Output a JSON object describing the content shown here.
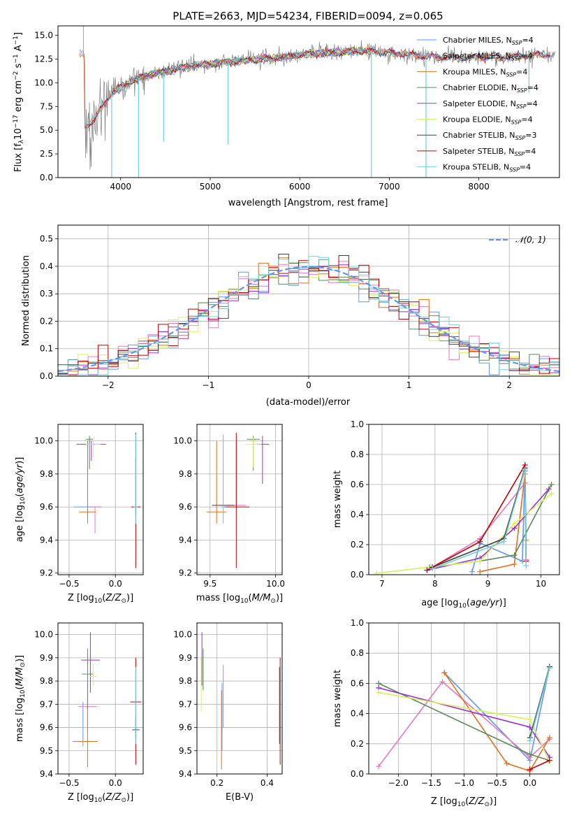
{
  "colors": {
    "data": "#808080",
    "chabrier_miles": "#6495ED",
    "salpeter_miles": "#E377C2",
    "kroupa_miles": "#E07020",
    "chabrier_elodie": "#5A8A5A",
    "salpeter_elodie": "#9932CC",
    "kroupa_elodie": "#D8F060",
    "chabrier_stelib": "#404040",
    "salpeter_stelib": "#C00000",
    "kroupa_stelib": "#70D0D8"
  },
  "chart_data": [
    {
      "id": "spectrum",
      "type": "line",
      "title": "PLATE=2663, MJD=54234, FIBERID=0094, z=0.065",
      "xlabel": "wavelength [Angstrom, rest frame]",
      "ylabel": "Flux [f_λ10^-17 erg cm^-2 s^-1 A^-1]",
      "xlim": [
        3300,
        8900
      ],
      "ylim": [
        0,
        16
      ],
      "xticks": [
        4000,
        5000,
        6000,
        7000,
        8000
      ],
      "yticks": [
        0.0,
        2.5,
        5.0,
        7.5,
        10.0,
        12.5,
        15.0
      ],
      "grid": false,
      "legend_position": "upper-right",
      "legend": [
        {
          "label": "Chabrier MILES, N",
          "sub": "SSP",
          "tail": "=4",
          "color": "#6495ED"
        },
        {
          "label": "Salpeter MILES, N",
          "sub": "SSP",
          "tail": "=4",
          "color": "#E377C2"
        },
        {
          "label": "Kroupa MILES, N",
          "sub": "SSP",
          "tail": "=4",
          "color": "#E07020"
        },
        {
          "label": "Chabrier ELODIE, N",
          "sub": "SSP",
          "tail": "=4",
          "color": "#5A8A5A"
        },
        {
          "label": "Salpeter ELODIE, N",
          "sub": "SSP",
          "tail": "=4",
          "color": "#9932CC"
        },
        {
          "label": "Kroupa ELODIE, N",
          "sub": "SSP",
          "tail": "=4",
          "color": "#D8F060"
        },
        {
          "label": "Chabrier STELIB, N",
          "sub": "SSP",
          "tail": "=3",
          "color": "#404040"
        },
        {
          "label": "Salpeter STELIB, N",
          "sub": "SSP",
          "tail": "=4",
          "color": "#C00000"
        },
        {
          "label": "Kroupa STELIB, N",
          "sub": "SSP",
          "tail": "=4",
          "color": "#70D0D8"
        }
      ],
      "continuum": {
        "x": [
          3600,
          3700,
          3800,
          3900,
          4000,
          4100,
          4200,
          4400,
          4600,
          4800,
          5000,
          5200,
          5400,
          5600,
          5800,
          6000,
          6200,
          6400,
          6600,
          6800,
          7000,
          7200,
          7400,
          7600,
          7800,
          8000,
          8200,
          8400,
          8600,
          8800
        ],
        "y": [
          5.5,
          6.0,
          7.5,
          9.0,
          9.5,
          10.0,
          10.5,
          11.0,
          11.4,
          11.8,
          12.0,
          12.2,
          12.4,
          12.5,
          12.7,
          12.9,
          13.1,
          13.2,
          13.3,
          13.3,
          13.2,
          13.0,
          12.8,
          12.7,
          12.6,
          12.7,
          12.7,
          12.8,
          12.9,
          13.0
        ]
      },
      "sharp_dips": [
        {
          "x": 3900,
          "y": 0.0
        },
        {
          "x": 4200,
          "y": 0.0
        },
        {
          "x": 4480,
          "y": 3.8
        },
        {
          "x": 5200,
          "y": 3.5
        },
        {
          "x": 6800,
          "y": 0.0
        },
        {
          "x": 7410,
          "y": 0.0
        },
        {
          "x": 8560,
          "y": 9.0
        }
      ]
    },
    {
      "id": "residuals",
      "type": "histogram",
      "xlabel": "(data-model)/error",
      "ylabel": "Normed distribution",
      "xlim": [
        -2.5,
        2.5
      ],
      "ylim": [
        0,
        0.55
      ],
      "xticks": [
        -2,
        -1,
        0,
        1,
        2
      ],
      "yticks": [
        0.0,
        0.1,
        0.2,
        0.3,
        0.4,
        0.5
      ],
      "grid": true,
      "legend_position": "upper-right",
      "legend_label": "𝒩(0, 1)",
      "legend_color": "#6495ED",
      "bin_width": 0.1,
      "bin_start": -2.5,
      "gaussian": {
        "mean": 0,
        "sigma": 1
      }
    },
    {
      "id": "age-vs-Z",
      "type": "errorbar",
      "xlabel": "Z [log10(Z/Z⊙)]",
      "ylabel": "age [log10(age/yr)]",
      "xlim": [
        -0.62,
        0.3
      ],
      "ylim": [
        9.19,
        10.1
      ],
      "xticks": [
        -0.5,
        0.0
      ],
      "yticks": [
        9.2,
        9.4,
        9.6,
        9.8,
        10.0
      ],
      "grid": true,
      "points": [
        {
          "x": -0.3,
          "y": 9.6,
          "xerr": 0.3,
          "ylo": 9.52,
          "yhi": 10.0,
          "color": "#6495ED"
        },
        {
          "x": -0.22,
          "y": 9.6,
          "xerr": 0.12,
          "ylo": 9.44,
          "yhi": 9.6,
          "color": "#E377C2"
        },
        {
          "x": -0.3,
          "y": 9.57,
          "xerr": 0.18,
          "ylo": 9.5,
          "yhi": 10.0,
          "color": "#E07020"
        },
        {
          "x": -0.28,
          "y": 10.01,
          "xerr": 0.08,
          "ylo": 9.83,
          "yhi": 10.03,
          "color": "#5A8A5A"
        },
        {
          "x": -0.26,
          "y": 9.98,
          "xerr": 0.32,
          "ylo": 9.88,
          "yhi": 10.0,
          "color": "#9932CC"
        },
        {
          "x": -0.24,
          "y": 9.98,
          "xerr": 0.16,
          "ylo": 9.9,
          "yhi": 10.02,
          "color": "#D8F060"
        },
        {
          "x": 0.22,
          "y": 9.6,
          "xerr": 0.08,
          "ylo": 9.55,
          "yhi": 10.05,
          "color": "#404040"
        },
        {
          "x": 0.22,
          "y": 9.6,
          "xerr": 0.1,
          "ylo": 9.23,
          "yhi": 9.9,
          "color": "#C00000"
        },
        {
          "x": 0.22,
          "y": 9.6,
          "xerr": 0.05,
          "ylo": 9.5,
          "yhi": 10.04,
          "color": "#70D0D8"
        }
      ]
    },
    {
      "id": "age-vs-mass",
      "type": "errorbar",
      "xlabel": "mass [log10(M/M⊙)]",
      "ylabel": "",
      "xlim": [
        9.4,
        10.05
      ],
      "ylim": [
        9.19,
        10.1
      ],
      "xticks": [
        9.5,
        10.0
      ],
      "yticks": [
        9.2,
        9.4,
        9.6,
        9.8,
        10.0
      ],
      "grid": true,
      "points": [
        {
          "x": 9.6,
          "y": 9.61,
          "xerr": 0.03,
          "ylo": 9.5,
          "yhi": 10.0,
          "color": "#6495ED"
        },
        {
          "x": 9.7,
          "y": 9.61,
          "xerr": 0.15,
          "ylo": 9.59,
          "yhi": 10.0,
          "color": "#E377C2"
        },
        {
          "x": 9.55,
          "y": 9.57,
          "xerr": 0.15,
          "ylo": 9.5,
          "yhi": 10.0,
          "color": "#E07020"
        },
        {
          "x": 9.83,
          "y": 10.01,
          "xerr": 0.1,
          "ylo": 9.82,
          "yhi": 10.03,
          "color": "#5A8A5A"
        },
        {
          "x": 9.9,
          "y": 9.98,
          "xerr": 0.1,
          "ylo": 9.74,
          "yhi": 10.03,
          "color": "#9932CC"
        },
        {
          "x": 9.83,
          "y": 9.98,
          "xerr": 0.12,
          "ylo": 9.84,
          "yhi": 10.02,
          "color": "#D8F060"
        },
        {
          "x": 9.6,
          "y": 9.61,
          "xerr": 0.17,
          "ylo": 9.55,
          "yhi": 10.03,
          "color": "#404040"
        },
        {
          "x": 9.7,
          "y": 9.6,
          "xerr": 0.2,
          "ylo": 9.23,
          "yhi": 10.05,
          "color": "#C00000"
        },
        {
          "x": 9.6,
          "y": 9.6,
          "xerr": 0.03,
          "ylo": 9.5,
          "yhi": 10.04,
          "color": "#70D0D8"
        }
      ]
    },
    {
      "id": "mass-weight-vs-age",
      "type": "line",
      "xlabel": "age [log10(age/yr)]",
      "ylabel": "mass weight",
      "xlim": [
        6.75,
        10.35
      ],
      "ylim": [
        0,
        1.0
      ],
      "xticks": [
        7,
        8,
        9,
        10
      ],
      "yticks": [
        0.0,
        0.2,
        0.4,
        0.6,
        0.8,
        1.0
      ],
      "grid": true,
      "series": [
        {
          "color": "#6495ED",
          "x": [
            8.7,
            8.85,
            9.65,
            9.7
          ],
          "y": [
            0.02,
            0.21,
            0.09,
            0.69
          ]
        },
        {
          "color": "#E377C2",
          "x": [
            7.95,
            8.85,
            9.7,
            9.72
          ],
          "y": [
            0.05,
            0.24,
            0.61,
            0.1
          ]
        },
        {
          "color": "#E07020",
          "x": [
            8.85,
            9.5,
            9.7,
            9.72
          ],
          "y": [
            0.02,
            0.07,
            0.67,
            0.23
          ]
        },
        {
          "color": "#5A8A5A",
          "x": [
            7.9,
            8.85,
            9.5,
            10.2
          ],
          "y": [
            0.05,
            0.09,
            0.13,
            0.6
          ]
        },
        {
          "color": "#9932CC",
          "x": [
            7.85,
            8.85,
            9.5,
            10.15
          ],
          "y": [
            0.03,
            0.11,
            0.31,
            0.57
          ]
        },
        {
          "color": "#D8F060",
          "x": [
            6.9,
            8.85,
            9.5,
            10.2
          ],
          "y": [
            0.01,
            0.09,
            0.34,
            0.54
          ]
        },
        {
          "color": "#404040",
          "x": [
            7.95,
            9.3,
            9.7
          ],
          "y": [
            0.05,
            0.24,
            0.71
          ]
        },
        {
          "color": "#C00000",
          "x": [
            7.85,
            8.85,
            9.7,
            9.72
          ],
          "y": [
            0.03,
            0.22,
            0.73,
            0.09
          ]
        },
        {
          "color": "#70D0D8",
          "x": [
            7.95,
            9.3,
            9.7,
            9.72
          ],
          "y": [
            0.04,
            0.22,
            0.7,
            0.06
          ]
        }
      ]
    },
    {
      "id": "mass-vs-Z",
      "type": "errorbar",
      "xlabel": "Z [log10(Z/Z⊙)]",
      "ylabel": "mass [log10(M/M⊙)]",
      "xlim": [
        -0.62,
        0.3
      ],
      "ylim": [
        9.4,
        10.05
      ],
      "xticks": [
        -0.5,
        0.0
      ],
      "yticks": [
        9.4,
        9.5,
        9.6,
        9.7,
        9.8,
        9.9,
        10.0
      ],
      "grid": true,
      "points": [
        {
          "x": -0.35,
          "y": 9.54,
          "xerr": 0.22,
          "ylo": 9.52,
          "yhi": 9.71,
          "color": "#6495ED"
        },
        {
          "x": -0.3,
          "y": 9.69,
          "xerr": 0.2,
          "ylo": 9.59,
          "yhi": 9.79,
          "color": "#E377C2"
        },
        {
          "x": -0.3,
          "y": 9.54,
          "xerr": 0.22,
          "ylo": 9.43,
          "yhi": 9.72,
          "color": "#E07020"
        },
        {
          "x": -0.3,
          "y": 9.83,
          "xerr": 0.12,
          "ylo": 9.68,
          "yhi": 9.94,
          "color": "#5A8A5A"
        },
        {
          "x": -0.27,
          "y": 9.89,
          "xerr": 0.2,
          "ylo": 9.75,
          "yhi": 10.01,
          "color": "#9932CC"
        },
        {
          "x": -0.24,
          "y": 9.82,
          "xerr": 0.08,
          "ylo": 9.78,
          "yhi": 9.87,
          "color": "#D8F060"
        },
        {
          "x": 0.22,
          "y": 9.59,
          "xerr": 0.08,
          "ylo": 9.55,
          "yhi": 9.65,
          "color": "#404040"
        },
        {
          "x": 0.22,
          "y": 9.71,
          "xerr": 0.12,
          "ylo": 9.44,
          "yhi": 9.9,
          "color": "#C00000"
        },
        {
          "x": 0.22,
          "y": 9.6,
          "xerr": 0.05,
          "ylo": 9.53,
          "yhi": 9.86,
          "color": "#70D0D8"
        }
      ]
    },
    {
      "id": "mass-vs-ebv",
      "type": "errorbar",
      "xlabel": "E(B-V)",
      "ylabel": "",
      "xlim": [
        0.12,
        0.46
      ],
      "ylim": [
        9.4,
        10.05
      ],
      "xticks": [
        0.2,
        0.4
      ],
      "yticks": [
        9.4,
        9.5,
        9.6,
        9.7,
        9.8,
        9.9,
        10.0
      ],
      "grid": true,
      "points": [
        {
          "x": 0.22,
          "y": 9.6,
          "ylo": 9.5,
          "yhi": 9.79,
          "color": "#6495ED"
        },
        {
          "x": 0.225,
          "y": 9.7,
          "ylo": 9.6,
          "yhi": 9.87,
          "color": "#E377C2"
        },
        {
          "x": 0.218,
          "y": 9.55,
          "ylo": 9.42,
          "yhi": 9.76,
          "color": "#E07020"
        },
        {
          "x": 0.145,
          "y": 9.85,
          "ylo": 9.76,
          "yhi": 9.94,
          "color": "#5A8A5A"
        },
        {
          "x": 0.14,
          "y": 9.9,
          "ylo": 9.78,
          "yhi": 10.01,
          "color": "#9932CC"
        },
        {
          "x": 0.137,
          "y": 9.8,
          "ylo": 9.67,
          "yhi": 9.9,
          "color": "#D8F060"
        },
        {
          "x": 0.45,
          "y": 9.6,
          "ylo": 9.53,
          "yhi": 9.86,
          "color": "#404040"
        },
        {
          "x": 0.452,
          "y": 9.7,
          "ylo": 9.44,
          "yhi": 9.9,
          "color": "#C00000"
        },
        {
          "x": 0.448,
          "y": 9.65,
          "ylo": 9.53,
          "yhi": 9.86,
          "color": "#70D0D8"
        }
      ]
    },
    {
      "id": "mass-weight-vs-Z",
      "type": "line",
      "xlabel": "Z [log10(Z/Z⊙)]",
      "ylabel": "mass weight",
      "xlim": [
        -2.45,
        0.45
      ],
      "ylim": [
        0,
        1.0
      ],
      "xticks": [
        -2.0,
        -1.5,
        -1.0,
        -0.5,
        0.0
      ],
      "yticks": [
        0.0,
        0.2,
        0.4,
        0.6,
        0.8,
        1.0
      ],
      "grid": true,
      "series": [
        {
          "color": "#6495ED",
          "x": [
            -1.3,
            0.0,
            0.3
          ],
          "y": [
            0.67,
            0.09,
            0.71
          ]
        },
        {
          "color": "#E377C2",
          "x": [
            -2.3,
            -1.33,
            0.0,
            0.3
          ],
          "y": [
            0.05,
            0.61,
            0.11,
            0.23
          ]
        },
        {
          "color": "#E07020",
          "x": [
            -1.3,
            -0.35,
            0.0,
            0.3
          ],
          "y": [
            0.67,
            0.07,
            0.02,
            0.24
          ]
        },
        {
          "color": "#5A8A5A",
          "x": [
            -2.3,
            0.0,
            0.3
          ],
          "y": [
            0.6,
            0.13,
            0.09
          ]
        },
        {
          "color": "#9932CC",
          "x": [
            -2.3,
            0.0,
            0.3
          ],
          "y": [
            0.57,
            0.31,
            0.11
          ]
        },
        {
          "color": "#D8F060",
          "x": [
            -2.3,
            0.0,
            0.3
          ],
          "y": [
            0.54,
            0.36,
            0.08
          ]
        },
        {
          "color": "#404040",
          "x": [
            0.0,
            0.3
          ],
          "y": [
            0.24,
            0.71
          ]
        },
        {
          "color": "#C00000",
          "x": [
            0.0,
            0.3
          ],
          "y": [
            0.03,
            0.09
          ]
        },
        {
          "color": "#70D0D8",
          "x": [
            0.0,
            0.3
          ],
          "y": [
            0.22,
            0.7
          ]
        }
      ]
    }
  ]
}
